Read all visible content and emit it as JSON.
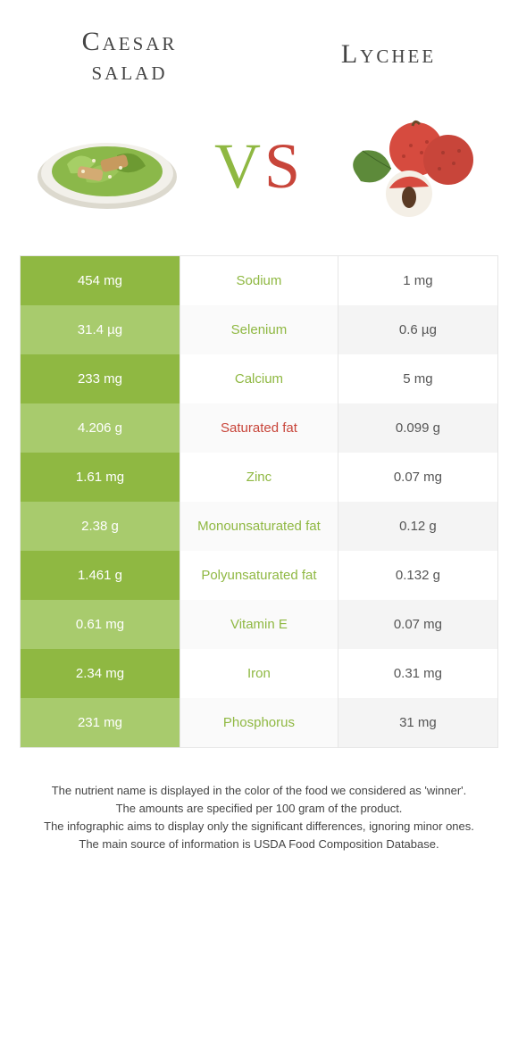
{
  "header": {
    "left_title_line1": "Caesar",
    "left_title_line2": "salad",
    "right_title": "Lychee"
  },
  "vs": {
    "v": "V",
    "s": "S"
  },
  "colors": {
    "left_bar_dark": "#8fb842",
    "left_bar_light": "#a8cb6d",
    "winner_left": "#8fb842",
    "winner_right": "#c8453a",
    "lychee_skin": "#d64b3f",
    "lychee_flesh": "#f4efe6",
    "leaf": "#5d8a3a",
    "plate": "#e8e8e3",
    "plate_rim": "#dcd9ce",
    "lettuce": "#8bb84a",
    "lettuce_dark": "#6d9a32",
    "chicken": "#c79a5e"
  },
  "nutrients": [
    {
      "name": "Sodium",
      "left": "454 mg",
      "right": "1 mg",
      "winner": "left"
    },
    {
      "name": "Selenium",
      "left": "31.4 µg",
      "right": "0.6 µg",
      "winner": "left"
    },
    {
      "name": "Calcium",
      "left": "233 mg",
      "right": "5 mg",
      "winner": "left"
    },
    {
      "name": "Saturated fat",
      "left": "4.206 g",
      "right": "0.099 g",
      "winner": "right"
    },
    {
      "name": "Zinc",
      "left": "1.61 mg",
      "right": "0.07 mg",
      "winner": "left"
    },
    {
      "name": "Monounsaturated fat",
      "left": "2.38 g",
      "right": "0.12 g",
      "winner": "left"
    },
    {
      "name": "Polyunsaturated fat",
      "left": "1.461 g",
      "right": "0.132 g",
      "winner": "left"
    },
    {
      "name": "Vitamin E",
      "left": "0.61 mg",
      "right": "0.07 mg",
      "winner": "left"
    },
    {
      "name": "Iron",
      "left": "2.34 mg",
      "right": "0.31 mg",
      "winner": "left"
    },
    {
      "name": "Phosphorus",
      "left": "231 mg",
      "right": "31 mg",
      "winner": "left"
    }
  ],
  "footnotes": [
    "The nutrient name is displayed in the color of the food we considered as 'winner'.",
    "The amounts are specified per 100 gram of the product.",
    "The infographic aims to display only the significant differences, ignoring minor ones.",
    "The main source of information is USDA Food Composition Database."
  ]
}
